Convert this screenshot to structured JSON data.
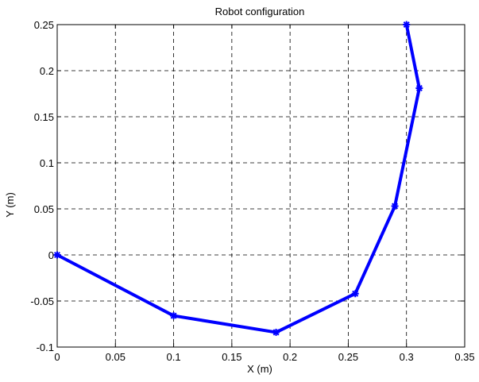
{
  "chart_data": {
    "type": "line",
    "title": "Robot configuration",
    "xlabel": "X (m)",
    "ylabel": "Y (m)",
    "xlim": [
      0,
      0.35
    ],
    "ylim": [
      -0.1,
      0.25
    ],
    "xticks": [
      0,
      0.05,
      0.1,
      0.15,
      0.2,
      0.25,
      0.3,
      0.35
    ],
    "xtick_labels": [
      "0",
      "0.05",
      "0.1",
      "0.15",
      "0.2",
      "0.25",
      "0.3",
      "0.35"
    ],
    "yticks": [
      -0.1,
      -0.05,
      0,
      0.05,
      0.1,
      0.15,
      0.2,
      0.25
    ],
    "ytick_labels": [
      "-0.1",
      "-0.05",
      "0",
      "0.05",
      "0.1",
      "0.15",
      "0.2",
      "0.25"
    ],
    "grid": true,
    "grid_style": "dashed",
    "legend": false,
    "series": [
      {
        "color": "#0000ff",
        "marker": "star",
        "x": [
          0.0,
          0.1,
          0.188,
          0.256,
          0.29,
          0.311,
          0.3
        ],
        "y": [
          0.0,
          -0.066,
          -0.084,
          -0.042,
          0.053,
          0.181,
          0.25
        ]
      }
    ]
  }
}
